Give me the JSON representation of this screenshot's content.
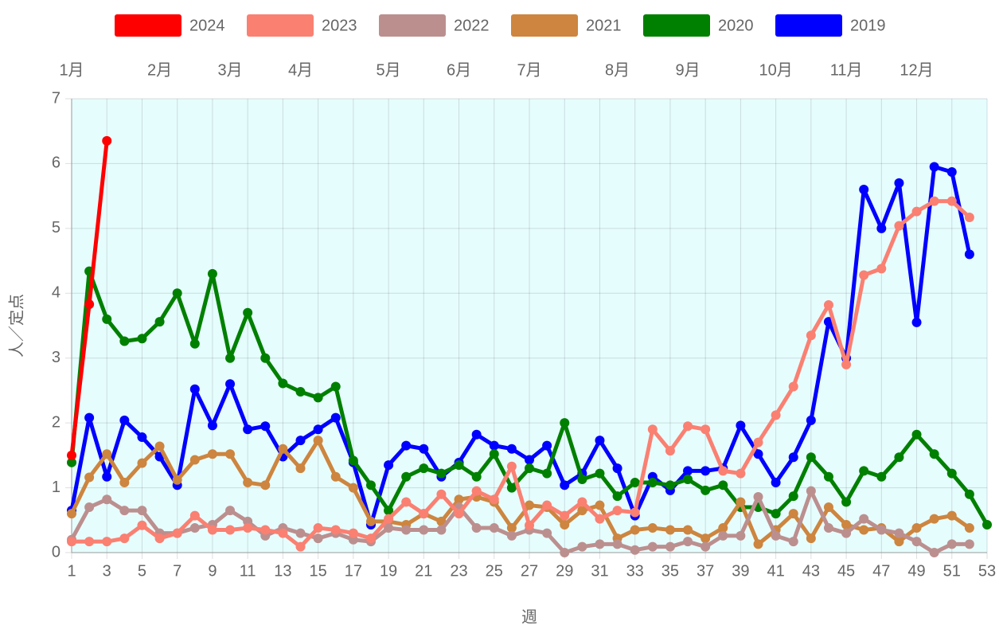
{
  "chart_data": {
    "type": "line",
    "x": [
      1,
      2,
      3,
      4,
      5,
      6,
      7,
      8,
      9,
      10,
      11,
      12,
      13,
      14,
      15,
      16,
      17,
      18,
      19,
      20,
      21,
      22,
      23,
      24,
      25,
      26,
      27,
      28,
      29,
      30,
      31,
      32,
      33,
      34,
      35,
      36,
      37,
      38,
      39,
      40,
      41,
      42,
      43,
      44,
      45,
      46,
      47,
      48,
      49,
      50,
      51,
      52,
      53
    ],
    "xlim": [
      1,
      53
    ],
    "xticks": [
      1,
      3,
      5,
      7,
      9,
      11,
      13,
      15,
      17,
      19,
      21,
      23,
      25,
      27,
      29,
      31,
      33,
      35,
      37,
      39,
      41,
      43,
      45,
      47,
      49,
      51,
      53
    ],
    "ylim": [
      0,
      7
    ],
    "yticks": [
      0,
      1,
      2,
      3,
      4,
      5,
      6,
      7
    ],
    "x_label": "週",
    "y_label": "人／定点",
    "grid": true,
    "legend": "top",
    "month_ticks": [
      {
        "value": 1,
        "label": "1月"
      },
      {
        "value": 6,
        "label": "2月"
      },
      {
        "value": 10,
        "label": "3月"
      },
      {
        "value": 14,
        "label": "4月"
      },
      {
        "value": 19,
        "label": "5月"
      },
      {
        "value": 23,
        "label": "6月"
      },
      {
        "value": 27,
        "label": "7月"
      },
      {
        "value": 32,
        "label": "8月"
      },
      {
        "value": 36,
        "label": "9月"
      },
      {
        "value": 41,
        "label": "10月"
      },
      {
        "value": 45,
        "label": "11月"
      },
      {
        "value": 49,
        "label": "12月"
      }
    ],
    "series": [
      {
        "name": "2024",
        "color": "#ff0000",
        "values": [
          1.5,
          3.83,
          6.35,
          null,
          null,
          null,
          null,
          null,
          null,
          null,
          null,
          null,
          null,
          null,
          null,
          null,
          null,
          null,
          null,
          null,
          null,
          null,
          null,
          null,
          null,
          null,
          null,
          null,
          null,
          null,
          null,
          null,
          null,
          null,
          null,
          null,
          null,
          null,
          null,
          null,
          null,
          null,
          null,
          null,
          null,
          null,
          null,
          null,
          null,
          null,
          null,
          null,
          null
        ]
      },
      {
        "name": "2023",
        "color": "#fa8072",
        "values": [
          0.17,
          0.17,
          0.17,
          0.22,
          0.42,
          0.22,
          0.3,
          0.57,
          0.35,
          0.35,
          0.38,
          0.35,
          0.3,
          0.09,
          0.38,
          0.35,
          0.3,
          0.22,
          0.52,
          0.78,
          0.6,
          0.9,
          0.6,
          0.95,
          0.82,
          1.33,
          0.42,
          0.73,
          0.57,
          0.78,
          0.52,
          0.65,
          0.62,
          1.9,
          1.57,
          1.95,
          1.9,
          1.26,
          1.22,
          1.7,
          2.12,
          2.56,
          3.35,
          3.82,
          2.9,
          4.28,
          4.38,
          5.04,
          5.26,
          5.42,
          5.42,
          5.17,
          null
        ]
      },
      {
        "name": "2022",
        "color": "#bc8f8f",
        "values": [
          0.2,
          0.7,
          0.82,
          0.65,
          0.65,
          0.3,
          0.3,
          0.38,
          0.43,
          0.65,
          0.48,
          0.26,
          0.38,
          0.3,
          0.22,
          0.3,
          0.2,
          0.17,
          0.38,
          0.35,
          0.35,
          0.35,
          0.7,
          0.38,
          0.38,
          0.26,
          0.35,
          0.3,
          0,
          0.09,
          0.13,
          0.13,
          0.04,
          0.09,
          0.09,
          0.17,
          0.09,
          0.26,
          0.26,
          0.86,
          0.26,
          0.17,
          0.95,
          0.38,
          0.3,
          0.52,
          0.35,
          0.3,
          0.17,
          0,
          0.13,
          0.13,
          null
        ]
      },
      {
        "name": "2021",
        "color": "#cd853f",
        "values": [
          0.6,
          1.16,
          1.52,
          1.08,
          1.38,
          1.64,
          1.12,
          1.43,
          1.52,
          1.52,
          1.08,
          1.04,
          1.6,
          1.3,
          1.73,
          1.17,
          1.0,
          0.48,
          0.48,
          0.43,
          0.6,
          0.48,
          0.82,
          0.86,
          0.78,
          0.38,
          0.73,
          0.7,
          0.43,
          0.65,
          0.73,
          0.22,
          0.35,
          0.38,
          0.35,
          0.35,
          0.22,
          0.38,
          0.78,
          0.13,
          0.35,
          0.6,
          0.22,
          0.7,
          0.43,
          0.35,
          0.38,
          0.17,
          0.38,
          0.52,
          0.57,
          0.38,
          null
        ]
      },
      {
        "name": "2020",
        "color": "#008000",
        "values": [
          1.39,
          4.34,
          3.6,
          3.26,
          3.3,
          3.56,
          4.0,
          3.22,
          4.3,
          3.0,
          3.7,
          3.0,
          2.61,
          2.48,
          2.39,
          2.56,
          1.42,
          1.04,
          0.65,
          1.17,
          1.3,
          1.22,
          1.35,
          1.17,
          1.52,
          1.0,
          1.3,
          1.22,
          2.0,
          1.13,
          1.22,
          0.87,
          1.08,
          1.08,
          1.04,
          1.13,
          0.96,
          1.04,
          0.7,
          0.7,
          0.6,
          0.87,
          1.47,
          1.17,
          0.78,
          1.26,
          1.17,
          1.47,
          1.82,
          1.52,
          1.22,
          0.9,
          0.43
        ]
      },
      {
        "name": "2019",
        "color": "#0000ff",
        "values": [
          0.65,
          2.08,
          1.17,
          2.04,
          1.78,
          1.48,
          1.04,
          2.52,
          1.96,
          2.6,
          1.9,
          1.95,
          1.48,
          1.73,
          1.9,
          2.08,
          1.39,
          0.43,
          1.35,
          1.65,
          1.6,
          1.17,
          1.39,
          1.82,
          1.65,
          1.6,
          1.43,
          1.65,
          1.04,
          1.22,
          1.73,
          1.3,
          0.57,
          1.17,
          0.96,
          1.26,
          1.26,
          1.3,
          1.96,
          1.52,
          1.08,
          1.47,
          2.04,
          3.56,
          3.0,
          5.6,
          5.0,
          5.7,
          3.55,
          5.95,
          5.87,
          4.6,
          null
        ]
      }
    ]
  }
}
